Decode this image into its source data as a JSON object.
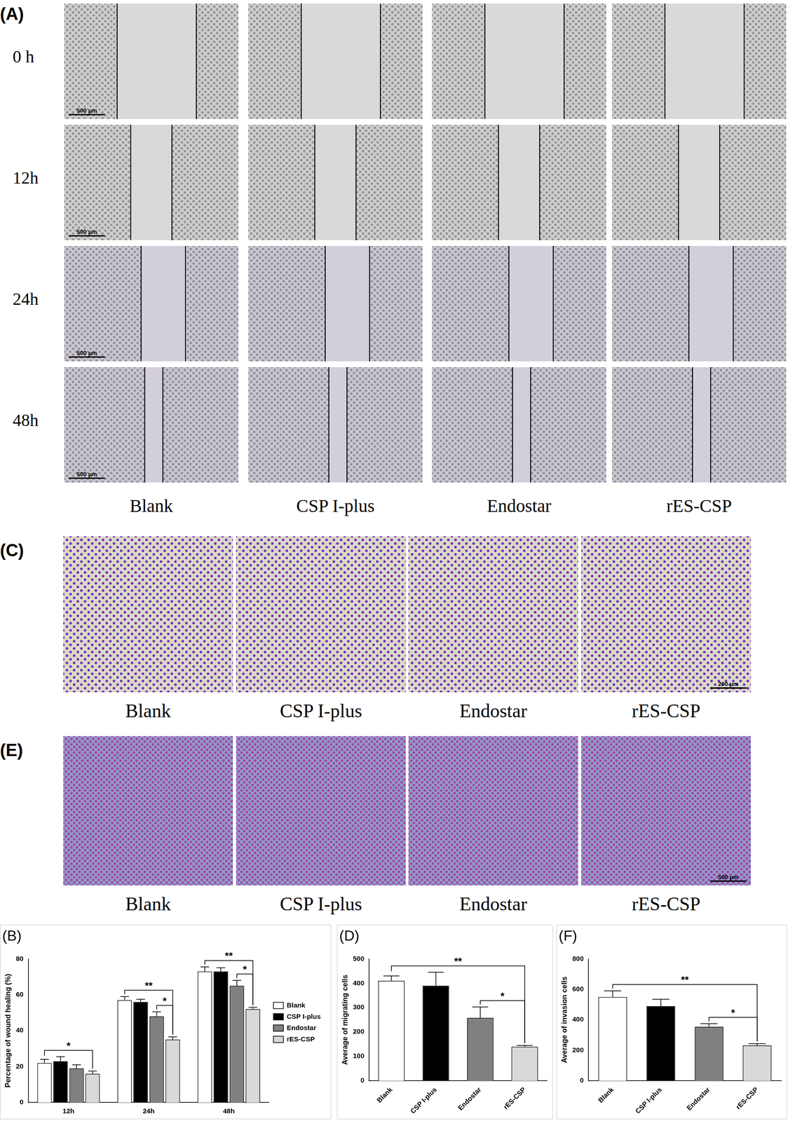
{
  "image_panels": [
    {
      "label": "(A)",
      "rows": [
        "0 h",
        "12h",
        "24h",
        "48h"
      ],
      "columns": [
        "Blank",
        "CSP I-plus",
        "Endostar",
        "rES-CSP"
      ],
      "scale_bar": "500 μm"
    },
    {
      "label": "(C)",
      "columns": [
        "Blank",
        "CSP I-plus",
        "Endostar",
        "rES-CSP"
      ],
      "scale_bar": "200 μm"
    },
    {
      "label": "(E)",
      "columns": [
        "Blank",
        "CSP I-plus",
        "Endostar",
        "rES-CSP"
      ],
      "scale_bar": "500 μm"
    }
  ],
  "chart_data": [
    {
      "type": "bar",
      "title": "(B)",
      "y_label": "Percentage of wound healing (%)",
      "categories": [
        "12h",
        "24h",
        "48h"
      ],
      "series": [
        {
          "name": "Blank",
          "color": "#ffffff",
          "values": [
            22,
            57,
            73
          ],
          "errors": [
            2,
            2,
            2.5
          ]
        },
        {
          "name": "CSP I-plus",
          "color": "#000000",
          "values": [
            23,
            56,
            73
          ],
          "errors": [
            2.5,
            1.5,
            2
          ]
        },
        {
          "name": "Endostar",
          "color": "#808080",
          "values": [
            19,
            48,
            65
          ],
          "errors": [
            2,
            2.5,
            3
          ]
        },
        {
          "name": "rES-CSP",
          "color": "#d9d9d9",
          "values": [
            16,
            35,
            52
          ],
          "errors": [
            1.5,
            1.5,
            1
          ]
        }
      ],
      "ylim": [
        0,
        80
      ],
      "yticks": [
        0,
        20,
        40,
        60,
        80
      ],
      "grid": false,
      "legend": "right",
      "annotations": [
        {
          "text": "*",
          "category": "12h",
          "from": "Blank",
          "to": "rES-CSP"
        },
        {
          "text": "**",
          "category": "24h",
          "from": "Blank",
          "to": "rES-CSP"
        },
        {
          "text": "*",
          "category": "24h",
          "from": "Endostar",
          "to": "rES-CSP"
        },
        {
          "text": "**",
          "category": "48h",
          "from": "Blank",
          "to": "rES-CSP"
        },
        {
          "text": "*",
          "category": "48h",
          "from": "Endostar",
          "to": "rES-CSP"
        }
      ]
    },
    {
      "type": "bar",
      "title": "(D)",
      "y_label": "Average of migrating cells",
      "categories": [
        "Blank",
        "CSP I-plus",
        "Endostar",
        "rES-CSP"
      ],
      "values": [
        410,
        390,
        258,
        140
      ],
      "errors": [
        20,
        55,
        45,
        5
      ],
      "colors": [
        "#ffffff",
        "#000000",
        "#808080",
        "#d9d9d9"
      ],
      "ylim": [
        0,
        500
      ],
      "yticks": [
        0,
        100,
        200,
        300,
        400,
        500
      ],
      "grid": false,
      "annotations": [
        {
          "text": "**",
          "from": "Blank",
          "to": "rES-CSP"
        },
        {
          "text": "*",
          "from": "Endostar",
          "to": "rES-CSP"
        }
      ]
    },
    {
      "type": "bar",
      "title": "(F)",
      "y_label": "Average of invasion cells",
      "categories": [
        "Blank",
        "CSP I-plus",
        "Endostar",
        "rES-CSP"
      ],
      "values": [
        550,
        490,
        355,
        232
      ],
      "errors": [
        40,
        45,
        20,
        12
      ],
      "colors": [
        "#ffffff",
        "#000000",
        "#808080",
        "#d9d9d9"
      ],
      "ylim": [
        0,
        800
      ],
      "yticks": [
        0,
        200,
        400,
        600,
        800
      ],
      "grid": false,
      "annotations": [
        {
          "text": "**",
          "from": "Blank",
          "to": "rES-CSP"
        },
        {
          "text": "*",
          "from": "Endostar",
          "to": "rES-CSP"
        }
      ]
    }
  ]
}
